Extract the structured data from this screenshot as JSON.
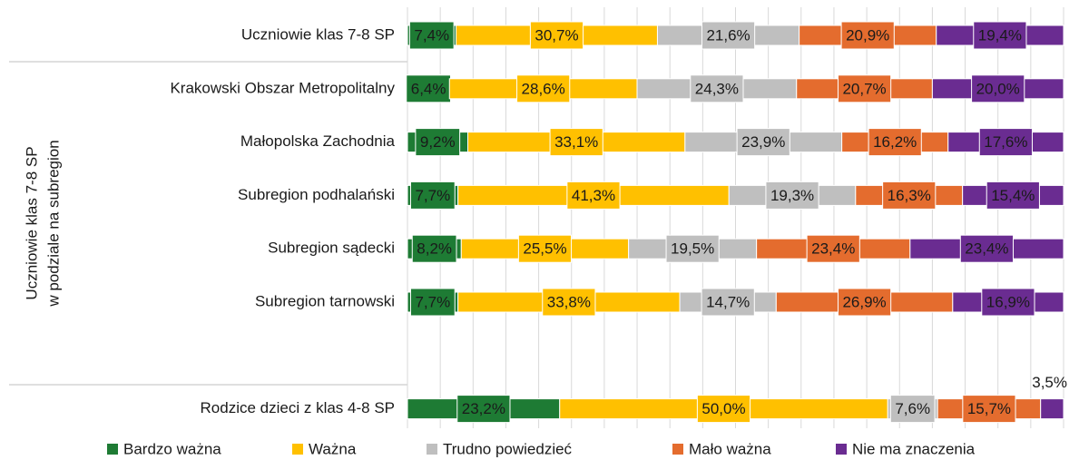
{
  "chart_data": {
    "type": "bar",
    "orientation": "horizontal",
    "stacked": true,
    "group_label": [
      "Uczniowie klas 7-8 SP",
      "w podziale na subregion"
    ],
    "categories": [
      "Uczniowie klas 7-8 SP",
      "Krakowski Obszar Metropolitalny",
      "Małopolska Zachodnia",
      "Subregion podhalański",
      "Subregion sądecki",
      "Subregion tarnowski",
      null,
      "Rodzice dzieci z klas 4-8 SP"
    ],
    "series": [
      {
        "name": "Bardzo ważna",
        "color": "#1e7b34",
        "values": [
          7.4,
          6.4,
          9.2,
          7.7,
          8.2,
          7.7,
          null,
          23.2
        ],
        "value_labels": [
          "7,4%",
          "6,4%",
          "9,2%",
          "7,7%",
          "8,2%",
          "7,7%",
          null,
          "23,2%"
        ]
      },
      {
        "name": "Ważna",
        "color": "#ffc000",
        "values": [
          30.7,
          28.6,
          33.1,
          41.3,
          25.5,
          33.8,
          null,
          50.0
        ],
        "value_labels": [
          "30,7%",
          "28,6%",
          "33,1%",
          "41,3%",
          "25,5%",
          "33,8%",
          null,
          "50,0%"
        ]
      },
      {
        "name": "Trudno powiedzieć",
        "color": "#bfbfbf",
        "values": [
          21.6,
          24.3,
          23.9,
          19.3,
          19.5,
          14.7,
          null,
          7.6
        ],
        "value_labels": [
          "21,6%",
          "24,3%",
          "23,9%",
          "19,3%",
          "19,5%",
          "14,7%",
          null,
          "7,6%"
        ]
      },
      {
        "name": "Mało ważna",
        "color": "#e46c2e",
        "values": [
          20.9,
          20.7,
          16.2,
          16.3,
          23.4,
          26.9,
          null,
          15.7
        ],
        "value_labels": [
          "20,9%",
          "20,7%",
          "16,2%",
          "16,3%",
          "23,4%",
          "26,9%",
          null,
          "15,7%"
        ]
      },
      {
        "name": "Nie ma znaczenia",
        "color": "#6a2c91",
        "values": [
          19.4,
          20.0,
          17.6,
          15.4,
          23.4,
          16.9,
          null,
          3.5
        ],
        "value_labels": [
          "19,4%",
          "20,0%",
          "17,6%",
          "15,4%",
          "23,4%",
          "16,9%",
          null,
          "3,5%"
        ]
      }
    ],
    "xlim": [
      0,
      100
    ],
    "xticks": [
      0,
      5,
      10,
      15,
      20,
      25,
      30,
      35,
      40,
      45,
      50,
      55,
      60,
      65,
      70,
      75,
      80,
      85,
      90,
      95,
      100
    ],
    "grid": true
  }
}
